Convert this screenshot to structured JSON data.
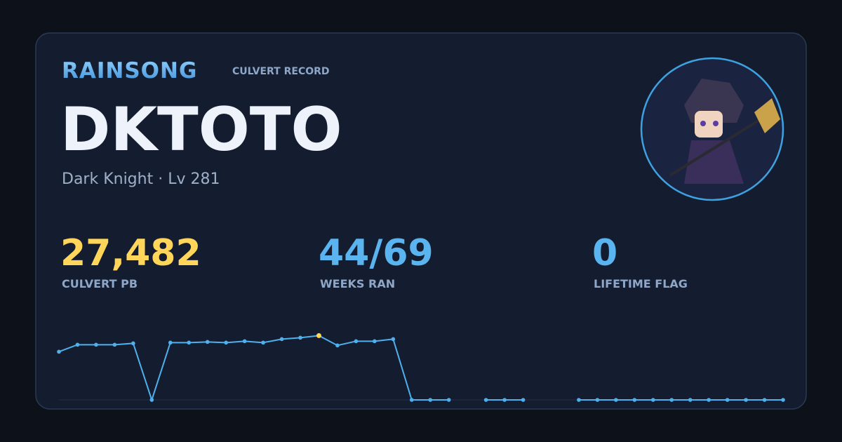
{
  "header": {
    "brand": "RAINSONG",
    "subtitle": "CULVERT RECORD"
  },
  "player": {
    "name": "DKTOTO",
    "info": "Dark Knight · Lv 281"
  },
  "stats": [
    {
      "value": "27,482",
      "label": "CULVERT PB",
      "color": "#ffd65a"
    },
    {
      "value": "44/69",
      "label": "WEEKS RAN",
      "color": "#5ab4ef"
    },
    {
      "value": "0",
      "label": "LIFETIME FLAG",
      "color": "#5ab4ef"
    }
  ],
  "chart_data": {
    "type": "line",
    "color": "#4fb0ee",
    "highlight_color": "#ffd65a",
    "ylim": [
      0,
      30000
    ],
    "values": [
      20600,
      23600,
      23600,
      23600,
      24200,
      0,
      24500,
      24500,
      24800,
      24500,
      25100,
      24500,
      26000,
      26600,
      27482,
      23300,
      25100,
      25100,
      26000,
      0,
      0,
      0,
      null,
      0,
      0,
      0,
      null,
      null,
      0,
      0,
      0,
      0,
      0,
      0,
      0,
      0,
      0,
      0,
      0,
      0
    ]
  }
}
